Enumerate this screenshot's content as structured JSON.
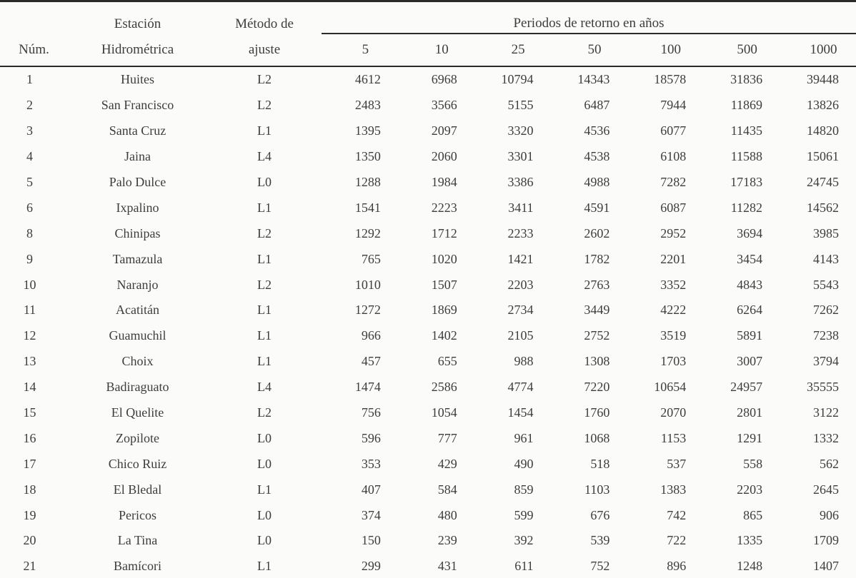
{
  "meta": {
    "background_color": "#fbfbfa",
    "text_color": "#3d3d3d",
    "rule_color": "#2a2a2a"
  },
  "table": {
    "header": {
      "num_label": "Núm.",
      "station_label_line1": "Estación",
      "station_label_line2": "Hidrométrica",
      "method_label_line1": "Método de",
      "method_label_line2": "ajuste",
      "periods_group_label": "Periodos de retorno en años",
      "period_columns": [
        "5",
        "10",
        "25",
        "50",
        "100",
        "500",
        "1000"
      ]
    },
    "rows": [
      {
        "num": "1",
        "station": "Huites",
        "method": "L2",
        "values": [
          "4612",
          "6968",
          "10794",
          "14343",
          "18578",
          "31836",
          "39448"
        ]
      },
      {
        "num": "2",
        "station": "San Francisco",
        "method": "L2",
        "values": [
          "2483",
          "3566",
          "5155",
          "6487",
          "7944",
          "11869",
          "13826"
        ]
      },
      {
        "num": "3",
        "station": "Santa Cruz",
        "method": "L1",
        "values": [
          "1395",
          "2097",
          "3320",
          "4536",
          "6077",
          "11435",
          "14820"
        ]
      },
      {
        "num": "4",
        "station": "Jaina",
        "method": "L4",
        "values": [
          "1350",
          "2060",
          "3301",
          "4538",
          "6108",
          "11588",
          "15061"
        ]
      },
      {
        "num": "5",
        "station": "Palo Dulce",
        "method": "L0",
        "values": [
          "1288",
          "1984",
          "3386",
          "4988",
          "7282",
          "17183",
          "24745"
        ]
      },
      {
        "num": "6",
        "station": "Ixpalino",
        "method": "L1",
        "values": [
          "1541",
          "2223",
          "3411",
          "4591",
          "6087",
          "11282",
          "14562"
        ]
      },
      {
        "num": "8",
        "station": "Chinipas",
        "method": "L2",
        "values": [
          "1292",
          "1712",
          "2233",
          "2602",
          "2952",
          "3694",
          "3985"
        ]
      },
      {
        "num": "9",
        "station": "Tamazula",
        "method": "L1",
        "values": [
          "765",
          "1020",
          "1421",
          "1782",
          "2201",
          "3454",
          "4143"
        ]
      },
      {
        "num": "10",
        "station": "Naranjo",
        "method": "L2",
        "values": [
          "1010",
          "1507",
          "2203",
          "2763",
          "3352",
          "4843",
          "5543"
        ]
      },
      {
        "num": "11",
        "station": "Acatitán",
        "method": "L1",
        "values": [
          "1272",
          "1869",
          "2734",
          "3449",
          "4222",
          "6264",
          "7262"
        ]
      },
      {
        "num": "12",
        "station": "Guamuchil",
        "method": "L1",
        "values": [
          "966",
          "1402",
          "2105",
          "2752",
          "3519",
          "5891",
          "7238"
        ]
      },
      {
        "num": "13",
        "station": "Choix",
        "method": "L1",
        "values": [
          "457",
          "655",
          "988",
          "1308",
          "1703",
          "3007",
          "3794"
        ]
      },
      {
        "num": "14",
        "station": "Badiraguato",
        "method": "L4",
        "values": [
          "1474",
          "2586",
          "4774",
          "7220",
          "10654",
          "24957",
          "35555"
        ]
      },
      {
        "num": "15",
        "station": "El Quelite",
        "method": "L2",
        "values": [
          "756",
          "1054",
          "1454",
          "1760",
          "2070",
          "2801",
          "3122"
        ]
      },
      {
        "num": "16",
        "station": "Zopilote",
        "method": "L0",
        "values": [
          "596",
          "777",
          "961",
          "1068",
          "1153",
          "1291",
          "1332"
        ]
      },
      {
        "num": "17",
        "station": "Chico Ruiz",
        "method": "L0",
        "values": [
          "353",
          "429",
          "490",
          "518",
          "537",
          "558",
          "562"
        ]
      },
      {
        "num": "18",
        "station": "El Bledal",
        "method": "L1",
        "values": [
          "407",
          "584",
          "859",
          "1103",
          "1383",
          "2203",
          "2645"
        ]
      },
      {
        "num": "19",
        "station": "Pericos",
        "method": "L0",
        "values": [
          "374",
          "480",
          "599",
          "676",
          "742",
          "865",
          "906"
        ]
      },
      {
        "num": "20",
        "station": "La Tina",
        "method": "L0",
        "values": [
          "150",
          "239",
          "392",
          "539",
          "722",
          "1335",
          "1709"
        ]
      },
      {
        "num": "21",
        "station": "Bamícori",
        "method": "L1",
        "values": [
          "299",
          "431",
          "611",
          "752",
          "896",
          "1248",
          "1407"
        ]
      }
    ]
  }
}
